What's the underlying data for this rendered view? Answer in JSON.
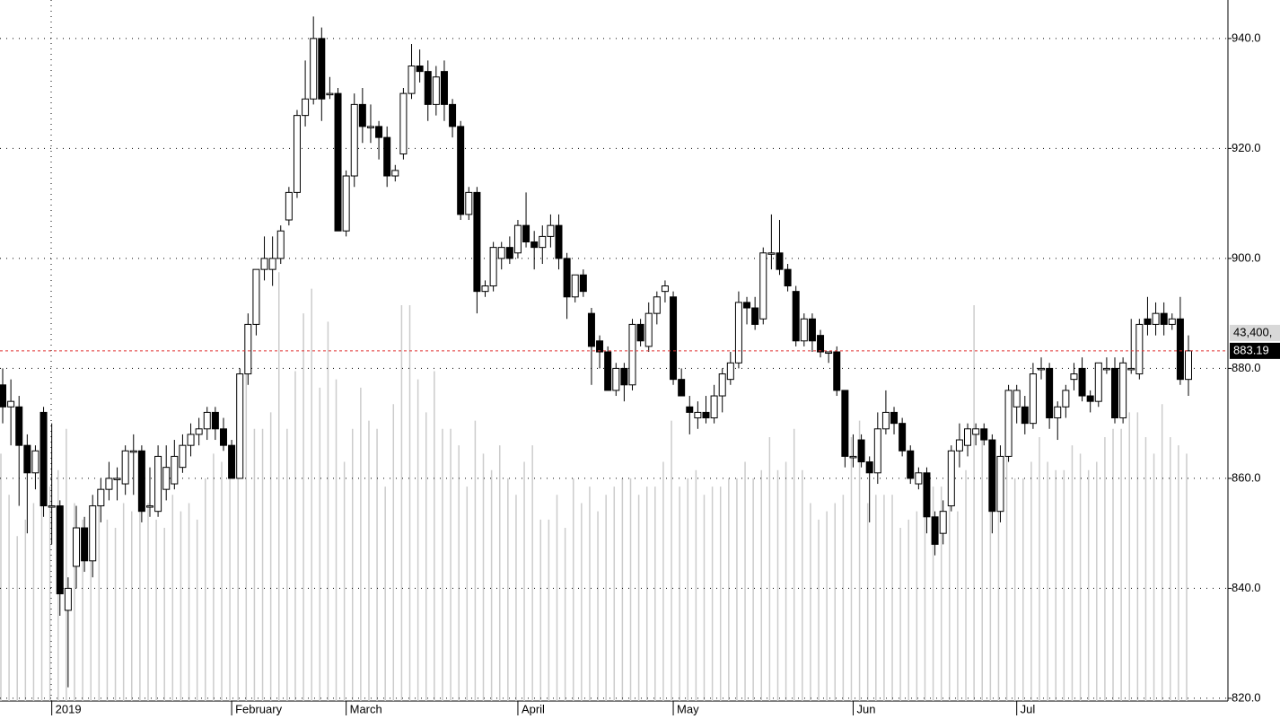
{
  "chart_data": {
    "type": "candlestick",
    "categories": [
      null,
      null,
      null,
      null,
      null,
      null,
      "2019",
      null,
      null,
      null,
      null,
      null,
      null,
      null,
      null,
      null,
      null,
      null,
      null,
      null,
      null,
      null,
      null,
      null,
      null,
      null,
      null,
      null,
      "February",
      null,
      null,
      null,
      null,
      null,
      null,
      null,
      null,
      null,
      null,
      null,
      null,
      null,
      "March",
      null,
      null,
      null,
      null,
      null,
      null,
      null,
      null,
      null,
      null,
      null,
      null,
      null,
      null,
      null,
      null,
      null,
      null,
      null,
      null,
      "April",
      null,
      null,
      null,
      null,
      null,
      null,
      null,
      null,
      null,
      null,
      null,
      null,
      null,
      null,
      null,
      null,
      null,
      null,
      "May",
      null,
      null,
      null,
      null,
      null,
      null,
      null,
      null,
      null,
      null,
      null,
      null,
      null,
      null,
      null,
      null,
      null,
      null,
      null,
      null,
      null,
      "Jun",
      null,
      null,
      null,
      null,
      null,
      null,
      null,
      null,
      null,
      null,
      null,
      null,
      null,
      null,
      null,
      null,
      null,
      null,
      null,
      "Jul",
      null,
      null,
      null,
      null,
      null,
      null,
      null,
      null,
      null,
      null,
      null,
      null,
      null,
      null,
      null,
      null,
      null,
      null,
      null,
      null,
      null
    ],
    "open": [
      877,
      873,
      873,
      866,
      861,
      872,
      855,
      855,
      836,
      844,
      851,
      845,
      855,
      858,
      860,
      859,
      865,
      865,
      855,
      854,
      858,
      859,
      862,
      866,
      868,
      869,
      872,
      869,
      866,
      860,
      879,
      888,
      898,
      898,
      900,
      907,
      912,
      926,
      929,
      940,
      930,
      930,
      905,
      915,
      928,
      924,
      924,
      922,
      915,
      919,
      930,
      935,
      934,
      928,
      934,
      928,
      924,
      908,
      912,
      894,
      895,
      900,
      902,
      901,
      906,
      903,
      902,
      904,
      906,
      900,
      893,
      897,
      890,
      885,
      883,
      876,
      880,
      877,
      888,
      884,
      890,
      894,
      893,
      878,
      873,
      871,
      872,
      871,
      875,
      878,
      881,
      892,
      891,
      889,
      901,
      901,
      898,
      894,
      885,
      889,
      886,
      883,
      883,
      876,
      864,
      867,
      863,
      861,
      869,
      872,
      870,
      865,
      859,
      861,
      853,
      850,
      855,
      865,
      866,
      868,
      869,
      867,
      854,
      864,
      873,
      873,
      870,
      880,
      880,
      871,
      873,
      878,
      880,
      875,
      874,
      880,
      880,
      871,
      880,
      879,
      889,
      888,
      890,
      888,
      889,
      878
    ],
    "high": [
      880,
      878,
      875,
      868,
      866,
      873,
      870,
      856,
      842,
      855,
      853,
      857,
      860,
      863,
      862,
      866,
      868,
      866,
      862,
      866,
      866,
      867,
      868,
      870,
      871,
      873,
      873,
      871,
      867,
      880,
      890,
      898,
      904,
      904,
      906,
      913,
      927,
      936,
      944,
      942,
      933,
      931,
      916,
      930,
      931,
      928,
      925,
      924,
      917,
      931,
      939,
      938,
      936,
      935,
      936,
      929,
      925,
      913,
      913,
      896,
      903,
      903,
      904,
      907,
      912,
      905,
      906,
      908,
      908,
      901,
      897,
      898,
      891,
      886,
      884,
      881,
      881,
      889,
      889,
      892,
      894,
      896,
      894,
      880,
      875,
      874,
      875,
      877,
      880,
      883,
      894,
      893,
      893,
      902,
      908,
      907,
      899,
      895,
      890,
      890,
      887,
      883,
      884,
      876,
      868,
      868,
      864,
      872,
      876,
      873,
      871,
      866,
      862,
      862,
      854,
      856,
      866,
      870,
      870,
      870,
      870,
      868,
      866,
      877,
      877,
      875,
      881,
      882,
      881,
      874,
      877,
      881,
      882,
      876,
      881,
      882,
      882,
      882,
      889,
      889,
      893,
      892,
      892,
      890,
      893,
      886
    ],
    "low": [
      870,
      866,
      855,
      850,
      858,
      853,
      848,
      835,
      822,
      840,
      843,
      842,
      852,
      856,
      856,
      857,
      857,
      852,
      853,
      853,
      856,
      858,
      861,
      864,
      866,
      867,
      867,
      865,
      860,
      860,
      877,
      886,
      896,
      895,
      899,
      906,
      911,
      924,
      928,
      925,
      929,
      905,
      904,
      913,
      921,
      921,
      918,
      913,
      914,
      918,
      929,
      932,
      925,
      926,
      925,
      922,
      907,
      907,
      890,
      893,
      894,
      898,
      899,
      900,
      902,
      898,
      899,
      902,
      898,
      889,
      892,
      893,
      877,
      880,
      876,
      875,
      874,
      876,
      884,
      883,
      888,
      892,
      877,
      875,
      868,
      869,
      870,
      870,
      872,
      877,
      880,
      888,
      887,
      888,
      898,
      897,
      894,
      884,
      884,
      883,
      882,
      881,
      875,
      862,
      862,
      862,
      852,
      859,
      868,
      868,
      864,
      859,
      858,
      850,
      846,
      848,
      854,
      862,
      864,
      866,
      866,
      850,
      852,
      863,
      870,
      868,
      869,
      878,
      869,
      867,
      871,
      876,
      874,
      872,
      873,
      879,
      870,
      870,
      879,
      878,
      886,
      886,
      886,
      887,
      877,
      875
    ],
    "close": [
      873,
      874,
      866,
      861,
      865,
      855,
      855,
      839,
      840,
      851,
      845,
      855,
      858,
      860,
      860,
      865,
      865,
      854,
      855,
      864,
      862,
      864,
      866,
      868,
      869,
      872,
      869,
      866,
      860,
      879,
      888,
      898,
      900,
      900,
      905,
      912,
      926,
      929,
      940,
      929,
      930,
      905,
      915,
      928,
      924,
      924,
      922,
      915,
      916,
      930,
      935,
      934,
      928,
      933,
      928,
      924,
      908,
      912,
      894,
      895,
      902,
      902,
      900,
      906,
      903,
      902,
      904,
      906,
      900,
      893,
      897,
      894,
      884,
      883,
      876,
      880,
      877,
      888,
      885,
      890,
      893,
      895,
      878,
      875,
      872,
      872,
      871,
      875,
      879,
      881,
      892,
      891,
      888,
      901,
      901,
      898,
      895,
      885,
      889,
      885,
      883,
      883,
      876,
      864,
      864,
      863,
      861,
      869,
      872,
      870,
      865,
      860,
      861,
      853,
      848,
      854,
      865,
      867,
      869,
      869,
      867,
      854,
      864,
      876,
      876,
      870,
      879,
      880,
      871,
      873,
      876,
      879,
      875,
      874,
      881,
      880,
      871,
      881,
      880,
      888,
      888,
      890,
      888,
      889,
      878,
      883.19
    ],
    "volume": [
      30000,
      25000,
      20000,
      22000,
      24000,
      30000,
      26000,
      28000,
      33000,
      24000,
      22000,
      20000,
      25000,
      22000,
      21000,
      24000,
      23000,
      26000,
      24000,
      22000,
      21000,
      25000,
      23000,
      24000,
      22000,
      27000,
      30000,
      29000,
      31000,
      38000,
      43000,
      33000,
      33000,
      35000,
      52000,
      33000,
      40000,
      47000,
      50000,
      38000,
      46000,
      39000,
      29000,
      33000,
      38000,
      34000,
      33000,
      26000,
      36000,
      48000,
      48000,
      39000,
      35000,
      40000,
      33000,
      33000,
      31000,
      26000,
      34000,
      30000,
      28000,
      31000,
      27000,
      25000,
      29000,
      31000,
      22000,
      22000,
      25000,
      21000,
      27000,
      24000,
      26000,
      23000,
      25000,
      26000,
      27000,
      27000,
      25000,
      26000,
      26000,
      29000,
      34000,
      26000,
      27000,
      28000,
      25000,
      26000,
      26000,
      27000,
      27000,
      29000,
      27000,
      28000,
      32000,
      28000,
      29000,
      33000,
      28000,
      24000,
      22000,
      23000,
      24000,
      25000,
      32000,
      34000,
      24000,
      25000,
      25000,
      25000,
      21000,
      22000,
      23000,
      25000,
      26000,
      26000,
      24000,
      23000,
      28000,
      48000,
      32000,
      27000,
      24000,
      30000,
      27000,
      27000,
      29000,
      32000,
      29000,
      28000,
      28000,
      31000,
      30000,
      28000,
      29000,
      32000,
      33000,
      33000,
      35000,
      35000,
      32000,
      30000,
      36000,
      32000,
      31000,
      30000
    ],
    "ylim": [
      819.5,
      947
    ],
    "yticks": [
      {
        "value": 820,
        "label": "820.0"
      },
      {
        "value": 840,
        "label": "840.0"
      },
      {
        "value": 860,
        "label": "860.0"
      },
      {
        "value": 880,
        "label": "880.0"
      },
      {
        "value": 900,
        "label": "900.0"
      },
      {
        "value": 920,
        "label": "920.0"
      },
      {
        "value": 940,
        "label": "940.0"
      }
    ],
    "y2lim": [
      0,
      85000
    ],
    "volume_label": "43,400,",
    "grid": true,
    "up_color": "#ffffff",
    "down_color": "#000000",
    "volume_color": "#cccccc",
    "last_line_color": "#e03030"
  }
}
